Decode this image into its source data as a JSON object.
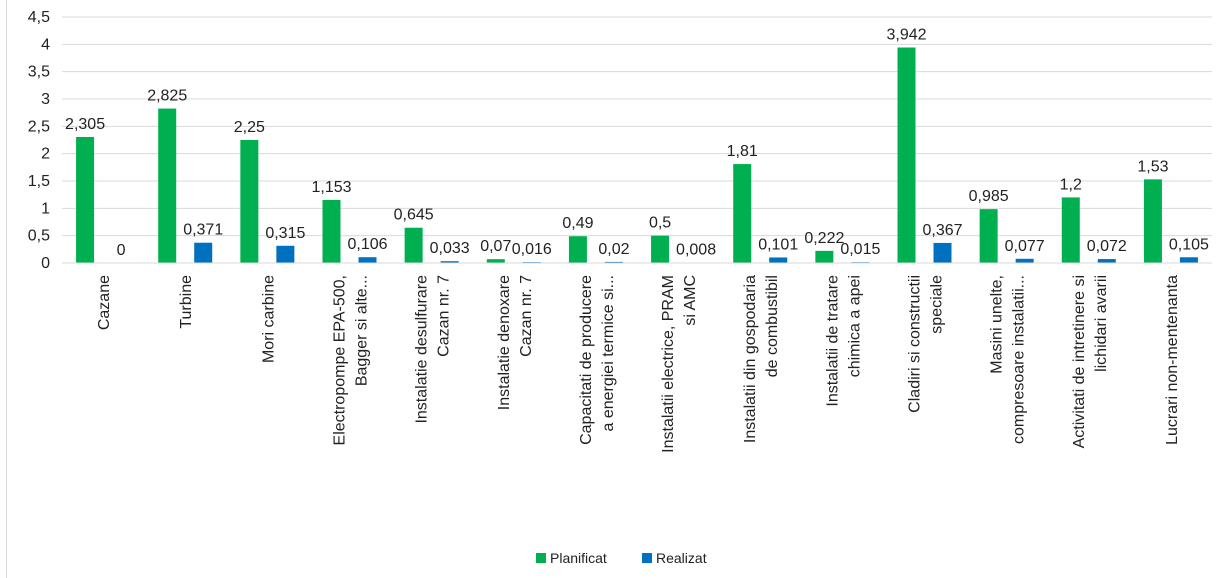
{
  "chart_data": {
    "type": "bar",
    "title": "",
    "xlabel": "",
    "ylabel": "",
    "ylim": [
      0,
      4.5
    ],
    "yticks": [
      "0",
      "0,5",
      "1",
      "1,5",
      "2",
      "2,5",
      "3",
      "3,5",
      "4",
      "4,5"
    ],
    "grid": true,
    "legend_position": "bottom",
    "categories": [
      [
        "Cazane"
      ],
      [
        "Turbine"
      ],
      [
        "Mori carbine"
      ],
      [
        "Electropompe EPA-500,",
        "Bagger si alte..."
      ],
      [
        "Instalatie desulfurare",
        "Cazan nr. 7"
      ],
      [
        "Instalatie denoxare",
        "Cazan nr. 7"
      ],
      [
        "Capacitati de producere",
        "a energiei termice si..."
      ],
      [
        "Instalatii electrice, PRAM",
        "si AMC"
      ],
      [
        "Instalatii din gospodaria",
        "de combustibil"
      ],
      [
        "Instalatii de tratare",
        "chimica a apei"
      ],
      [
        "Cladiri si constructii",
        "speciale"
      ],
      [
        "Masini unelte,",
        "compresoare instalatii..."
      ],
      [
        "Activitati de intretinere si",
        "lichidari avarii"
      ],
      [
        "Lucrari non-mentenanta"
      ]
    ],
    "series": [
      {
        "name": "Planificat",
        "color": "#00b050",
        "values": [
          2.305,
          2.825,
          2.25,
          1.153,
          0.645,
          0.07,
          0.49,
          0.5,
          1.81,
          0.222,
          3.942,
          0.985,
          1.2,
          1.53
        ],
        "labels": [
          "2,305",
          "2,825",
          "2,25",
          "1,153",
          "0,645",
          "0,07",
          "0,49",
          "0,5",
          "1,81",
          "0,222",
          "3,942",
          "0,985",
          "1,2",
          "1,53"
        ]
      },
      {
        "name": "Realizat",
        "color": "#0070c0",
        "values": [
          0,
          0.371,
          0.315,
          0.106,
          0.033,
          0.016,
          0.02,
          0.008,
          0.101,
          0.015,
          0.367,
          0.077,
          0.072,
          0.105
        ],
        "labels": [
          "0",
          "0,371",
          "0,315",
          "0,106",
          "0,033",
          "0,016",
          "0,02",
          "0,008",
          "0,101",
          "0,015",
          "0,367",
          "0,077",
          "0,072",
          "0,105"
        ]
      }
    ]
  }
}
